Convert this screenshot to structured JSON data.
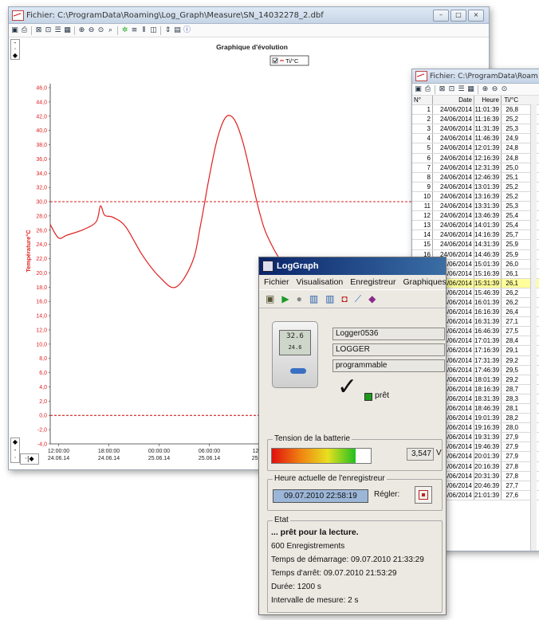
{
  "graph_window": {
    "title": "Fichier: C:\\ProgramData\\Roaming\\Log_Graph\\Measure\\SN_14032278_2.dbf",
    "minimize_label": "–",
    "maximize_label": "□",
    "close_label": "×"
  },
  "chart_data": {
    "type": "line",
    "title": "Graphique d'évolution",
    "ylabel": "Température°C",
    "legend": [
      "Ti/°C"
    ],
    "legend_placement": "top-center",
    "ylim": [
      -4,
      46
    ],
    "yticks": [
      "46,0",
      "44,0",
      "42,0",
      "40,0",
      "38,0",
      "36,0",
      "34,0",
      "32,0",
      "30,0",
      "28,0",
      "26,0",
      "24,0",
      "22,0",
      "20,0",
      "18,0",
      "16,0",
      "14,0",
      "12,0",
      "10,0",
      "8,0",
      "6,0",
      "4,0",
      "2,0",
      "0,0",
      "-2,0",
      "-4,0"
    ],
    "xticks": [
      {
        "time": "12:00:00",
        "date": "24.06.14"
      },
      {
        "time": "18:00:00",
        "date": "24.06.14"
      },
      {
        "time": "00:00:00",
        "date": "25.06.14"
      },
      {
        "time": "06:00:00",
        "date": "25.06.14"
      },
      {
        "time": "12:00",
        "date": "25.06."
      }
    ],
    "limits": [
      30,
      0
    ],
    "series": [
      {
        "name": "Ti/°C",
        "x_hours": [
          0,
          1,
          2,
          4,
          5.5,
          6,
          6.5,
          7.5,
          9,
          11,
          13,
          15,
          17,
          18,
          19,
          20,
          21,
          22,
          23,
          24,
          25,
          26,
          28,
          30,
          32
        ],
        "values": [
          26.8,
          24.9,
          25.3,
          26.1,
          27.2,
          29.4,
          28.1,
          27.8,
          26.5,
          22.5,
          19.5,
          18.0,
          21.6,
          27.0,
          33.5,
          39.0,
          41.9,
          41.5,
          38.4,
          33.5,
          28.5,
          25.0,
          21.0,
          19.5,
          22.0
        ]
      }
    ],
    "grid": false
  },
  "table_window": {
    "title": "Fichier: C:\\ProgramData\\Roam",
    "columns": [
      "N°",
      "Date",
      "Heure",
      "Ti/°C"
    ],
    "rows": [
      [
        "1",
        "24/06/2014",
        "11:01:39",
        "26,8"
      ],
      [
        "2",
        "24/06/2014",
        "11:16:39",
        "25,2"
      ],
      [
        "3",
        "24/06/2014",
        "11:31:39",
        "25,3"
      ],
      [
        "4",
        "24/06/2014",
        "11:46:39",
        "24,9"
      ],
      [
        "5",
        "24/06/2014",
        "12:01:39",
        "24,8"
      ],
      [
        "6",
        "24/06/2014",
        "12:16:39",
        "24,8"
      ],
      [
        "7",
        "24/06/2014",
        "12:31:39",
        "25,0"
      ],
      [
        "8",
        "24/06/2014",
        "12:46:39",
        "25,1"
      ],
      [
        "9",
        "24/06/2014",
        "13:01:39",
        "25,2"
      ],
      [
        "10",
        "24/06/2014",
        "13:16:39",
        "25,2"
      ],
      [
        "11",
        "24/06/2014",
        "13:31:39",
        "25,3"
      ],
      [
        "12",
        "24/06/2014",
        "13:46:39",
        "25,4"
      ],
      [
        "13",
        "24/06/2014",
        "14:01:39",
        "25,4"
      ],
      [
        "14",
        "24/06/2014",
        "14:16:39",
        "25,7"
      ],
      [
        "15",
        "24/06/2014",
        "14:31:39",
        "25,9"
      ],
      [
        "16",
        "24/06/2014",
        "14:46:39",
        "25,9"
      ],
      [
        "17",
        "24/06/2014",
        "15:01:39",
        "26,0"
      ],
      [
        "18",
        "24/06/2014",
        "15:16:39",
        "26,1"
      ],
      [
        "19",
        "24/06/2014",
        "15:31:39",
        "26,1"
      ],
      [
        "20",
        "24/06/2014",
        "15:46:39",
        "26,2"
      ],
      [
        "21",
        "24/06/2014",
        "16:01:39",
        "26,2"
      ],
      [
        "22",
        "24/06/2014",
        "16:16:39",
        "26,4"
      ],
      [
        "23",
        "24/06/2014",
        "16:31:39",
        "27,1"
      ],
      [
        "24",
        "24/06/2014",
        "16:46:39",
        "27,5"
      ],
      [
        "25",
        "24/06/2014",
        "17:01:39",
        "28,4"
      ],
      [
        "26",
        "24/06/2014",
        "17:16:39",
        "29,1"
      ],
      [
        "27",
        "24/06/2014",
        "17:31:39",
        "29,2"
      ],
      [
        "28",
        "24/06/2014",
        "17:46:39",
        "29,5"
      ],
      [
        "29",
        "24/06/2014",
        "18:01:39",
        "29,2"
      ],
      [
        "30",
        "24/06/2014",
        "18:16:39",
        "28,7"
      ],
      [
        "31",
        "24/06/2014",
        "18:31:39",
        "28,3"
      ],
      [
        "32",
        "24/06/2014",
        "18:46:39",
        "28,1"
      ],
      [
        "33",
        "24/06/2014",
        "19:01:39",
        "28,2"
      ],
      [
        "34",
        "24/06/2014",
        "19:16:39",
        "28,0"
      ],
      [
        "35",
        "24/06/2014",
        "19:31:39",
        "27,9"
      ],
      [
        "36",
        "24/06/2014",
        "19:46:39",
        "27,9"
      ],
      [
        "37",
        "24/06/2014",
        "20:01:39",
        "27,9"
      ],
      [
        "38",
        "24/06/2014",
        "20:16:39",
        "27,8"
      ],
      [
        "39",
        "24/06/2014",
        "20:31:39",
        "27,8"
      ],
      [
        "40",
        "24/06/2014",
        "20:46:39",
        "27,7"
      ],
      [
        "41",
        "24/06/2014",
        "21:01:39",
        "27,6"
      ]
    ],
    "highlighted_row": 18
  },
  "logger_window": {
    "title": "LogGraph",
    "menu": [
      "Fichier",
      "Visualisation",
      "Enregistreur",
      "Graphiques"
    ],
    "device_name": "Logger0536",
    "device_type": "LOGGER",
    "device_mode": "programmable",
    "lcd_top": "32.6",
    "lcd_bottom": "24.6",
    "ready_label": "prêt",
    "battery_group": "Tension de la batterie",
    "battery_value": "3,547",
    "battery_unit": "V",
    "battery_level": 0.85,
    "clock_group": "Heure actuelle de l'enregistreur",
    "clock_value": "09.07.2010 22:58:19",
    "set_label": "Régler:",
    "state_group": "Etat",
    "state_lines": [
      "... prêt pour la lecture.",
      "600 Enregistrements",
      "Temps de démarrage: 09.07.2010 21:33:29",
      "Temps d'arrêt: 09.07.2010 21:53:29",
      "Durée: 1200 s",
      "Intervalle de mesure: 2 s"
    ]
  },
  "colors": {
    "series": "#e02020",
    "limit": "#cc0000",
    "titlebar": "#c9d7e8",
    "dialog": "#ece9e2"
  }
}
